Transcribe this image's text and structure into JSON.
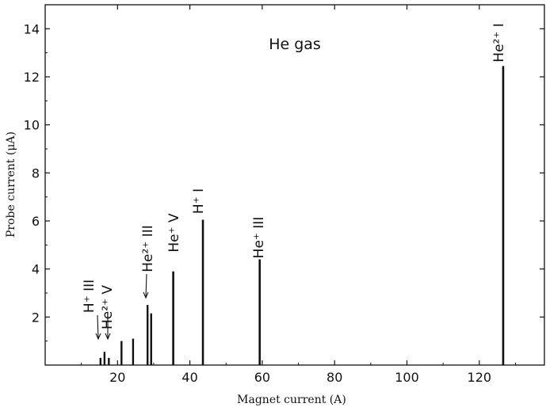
{
  "chart_data": {
    "type": "bar",
    "title": "He gas",
    "xlabel": "Magnet current (A)",
    "ylabel": "Probe current (μA)",
    "xlim": [
      0,
      138
    ],
    "ylim": [
      0,
      15
    ],
    "xticks": [
      20,
      40,
      60,
      80,
      100,
      120
    ],
    "yticks": [
      0,
      2,
      4,
      6,
      8,
      10,
      12,
      14
    ],
    "x_tick_labels": [
      "20",
      "40",
      "60",
      "80",
      "100",
      "120"
    ],
    "y_tick_labels": [
      "0",
      "2",
      "4",
      "6",
      "8",
      "10",
      "12",
      "14"
    ],
    "grid": false,
    "x": [
      15.3,
      16.4,
      17.6,
      21.1,
      24.3,
      28.3,
      29.3,
      35.4,
      43.6,
      59.3,
      126.6
    ],
    "values": [
      0.3,
      0.55,
      0.3,
      1.0,
      1.1,
      2.5,
      2.15,
      3.9,
      6.05,
      4.4,
      12.45
    ],
    "annotations": [
      {
        "text": "H⁺ III",
        "x": 15.3
      },
      {
        "text": "He²⁺ V",
        "x": 17.6
      },
      {
        "text": "He²⁺ III",
        "x": 28.3
      },
      {
        "text": "He⁺ V",
        "x": 35.4
      },
      {
        "text": "H⁺ I",
        "x": 43.6
      },
      {
        "text": "He⁺ III",
        "x": 59.3
      },
      {
        "text": "He²⁺ I",
        "x": 126.6
      }
    ]
  }
}
